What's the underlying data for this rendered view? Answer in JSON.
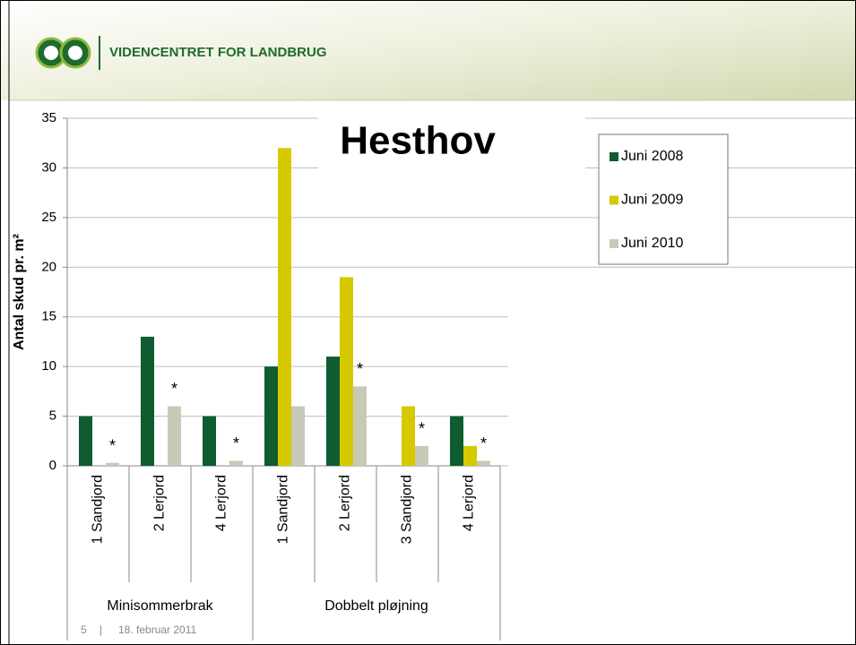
{
  "header": {
    "brand": "VIDENCENTRET FOR LANDBRUG"
  },
  "footer": {
    "page": "5",
    "separator": "|",
    "date": "18. februar 2011"
  },
  "chart_data": {
    "type": "bar",
    "title": "Hesthov",
    "y_label": "Antal skud pr. m²",
    "categories": [
      "1 Sandjord",
      "2 Lerjord",
      "4 Lerjord",
      "1 Sandjord",
      "2 Lerjord",
      "3 Sandjord",
      "4 Lerjord"
    ],
    "groups": [
      {
        "label": "Minisommerbrak",
        "size": 3
      },
      {
        "label": "Dobbelt pløjning",
        "size": 4
      }
    ],
    "series": [
      {
        "name": "Juni 2008",
        "color": "#0e5c2f",
        "values": [
          5,
          13,
          5,
          10,
          11,
          null,
          5
        ]
      },
      {
        "name": "Juni 2009",
        "color": "#d6c900",
        "values": [
          null,
          null,
          null,
          32,
          19,
          6,
          2
        ]
      },
      {
        "name": "Juni 2010",
        "color": "#c8c9b7",
        "values": [
          0.3,
          6,
          0.5,
          6,
          8,
          2,
          0.5
        ],
        "markers": [
          "*",
          "*",
          "*",
          null,
          "*",
          "*",
          "*"
        ]
      }
    ],
    "ylim": [
      0,
      35
    ],
    "yticks": [
      0,
      5,
      10,
      15,
      20,
      25,
      30,
      35
    ],
    "grid": true,
    "legend": "upper right"
  }
}
